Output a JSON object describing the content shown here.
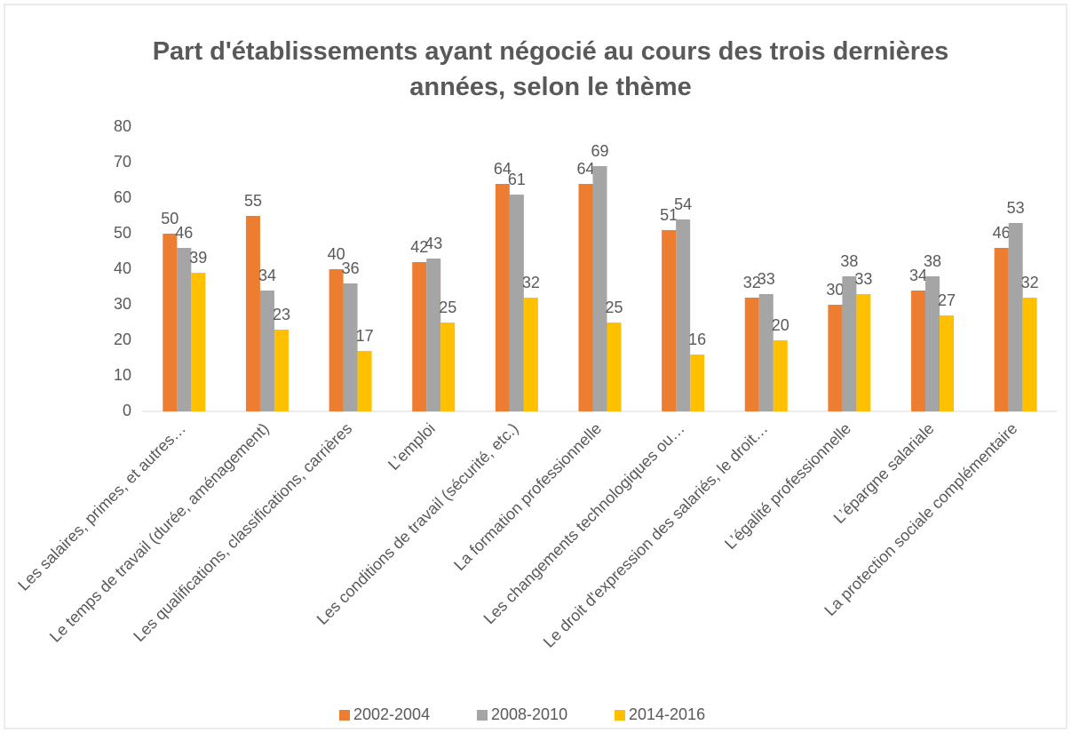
{
  "chart_data": {
    "type": "bar",
    "title": "Part d'établissements ayant négocié au cours des trois dernières années, selon le thème",
    "categories": [
      "Les salaires, primes, et autres…",
      "Le temps de travail (durée, aménagement)",
      "Les qualifications, classifications, carrières",
      "L’emploi",
      "Les conditions de travail (sécurité, etc.)",
      "La formation professionnelle",
      "Les changements technologiques ou…",
      "Le droit d'expression des salariés, le droit…",
      "L’égalité professionnelle",
      "L’épargne salariale",
      "La protection sociale complémentaire"
    ],
    "series": [
      {
        "name": "2002-2004",
        "color": "#ed7d31",
        "values": [
          50,
          55,
          40,
          42,
          64,
          64,
          51,
          32,
          30,
          34,
          46
        ]
      },
      {
        "name": "2008-2010",
        "color": "#a5a5a5",
        "values": [
          46,
          34,
          36,
          43,
          61,
          69,
          54,
          33,
          38,
          38,
          53
        ]
      },
      {
        "name": "2014-2016",
        "color": "#ffc000",
        "values": [
          39,
          23,
          17,
          25,
          32,
          25,
          16,
          20,
          33,
          27,
          32
        ]
      }
    ],
    "ylim": [
      0,
      80
    ],
    "yticks": [
      0,
      10,
      20,
      30,
      40,
      50,
      60,
      70,
      80
    ],
    "grid": false,
    "legend": "bottom"
  }
}
